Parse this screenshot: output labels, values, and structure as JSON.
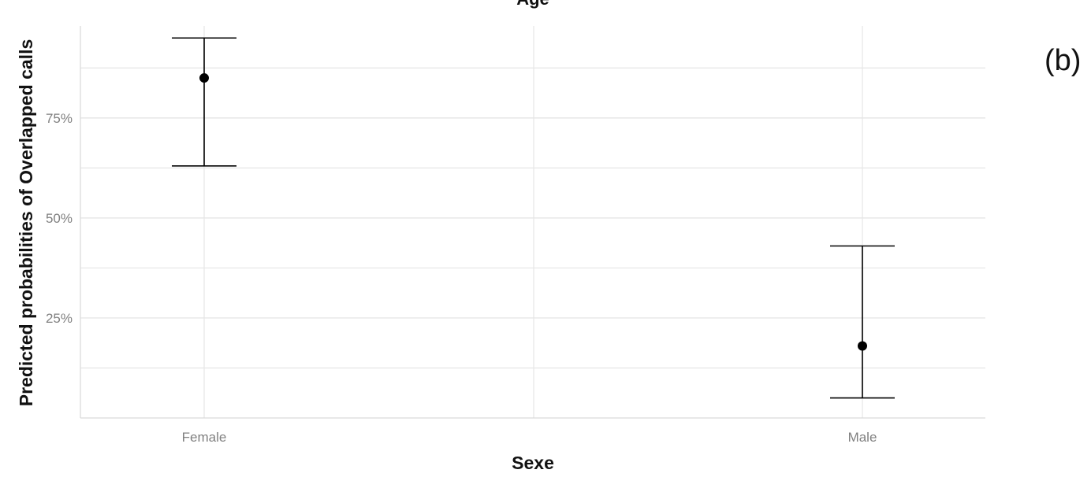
{
  "panel_label": "(b)",
  "chart_data": {
    "type": "scatter",
    "title": "Age",
    "xlabel": "Sexe",
    "ylabel": "Predicted probabilities of Overlapped calls",
    "categories": [
      "Female",
      "Male"
    ],
    "y_ticks": [
      0.25,
      0.5,
      0.75
    ],
    "y_tick_labels": [
      "25%",
      "50%",
      "75%"
    ],
    "ylim": [
      0.0,
      0.98
    ],
    "grid": true,
    "legend": "none",
    "points": [
      {
        "category": "Female",
        "estimate": 0.85,
        "lower": 0.63,
        "upper": 0.95
      },
      {
        "category": "Male",
        "estimate": 0.18,
        "lower": 0.05,
        "upper": 0.43
      }
    ],
    "colors": {
      "mark": "#000000",
      "grid": "#e6e6e6",
      "tick_label": "#808080",
      "axis_title": "#111111"
    }
  }
}
